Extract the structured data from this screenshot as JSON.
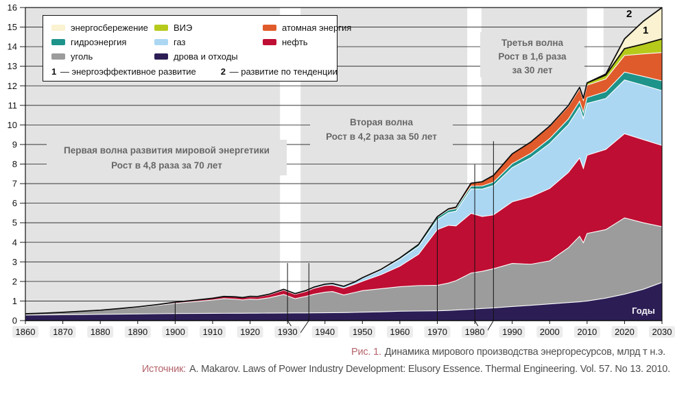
{
  "legend": {
    "items": [
      {
        "key": "saving",
        "label": "энергосбережение",
        "color": "#faf2d0",
        "icon": "energy-saving-swatch"
      },
      {
        "key": "hydro",
        "label": "гидроэнергия",
        "color": "#1d938a",
        "icon": "hydro-swatch"
      },
      {
        "key": "coal",
        "label": "уголь",
        "color": "#9c9c9c",
        "icon": "coal-swatch"
      },
      {
        "key": "renewables",
        "label": "ВИЭ",
        "color": "#b6ca1c",
        "icon": "renewables-swatch"
      },
      {
        "key": "gas",
        "label": "газ",
        "color": "#abd7f3",
        "icon": "gas-swatch"
      },
      {
        "key": "wood",
        "label": "дрова и отходы",
        "color": "#2c1e55",
        "icon": "wood-waste-swatch"
      },
      {
        "key": "nuclear",
        "label": "атомная энергия",
        "color": "#e05b2b",
        "icon": "nuclear-swatch"
      },
      {
        "key": "oil",
        "label": "нефть",
        "color": "#bf0e33",
        "icon": "oil-swatch"
      }
    ],
    "scenarios": [
      {
        "num": "1",
        "label": "энергоэффективное развитие"
      },
      {
        "num": "2",
        "label": "развитие по тенденции"
      }
    ]
  },
  "annotations": {
    "wave1": {
      "line1": "Первая волна развития мировой энергетики",
      "line2": "Рост в 4,8 раза за 70 лет"
    },
    "wave2": {
      "line1": "Вторая волна",
      "line2": "Рост в 4,2 раза за 50 лет"
    },
    "wave3": {
      "line1": "Третья волна",
      "line2": "Рост в 1,6 раза",
      "line3": "за 30 лет"
    }
  },
  "scenario_point_labels": {
    "efficient": "1",
    "trend": "2"
  },
  "axes": {
    "x_title": "Годы"
  },
  "caption": {
    "prefix": "Рис. 1.",
    "text": "Динамика мирового производства энергоресурсов, млрд т н.э."
  },
  "source": {
    "prefix": "Источник:",
    "text": "A. Makarov. Laws of Power Industry Development: Elusory Essence. Thermal Engineering. Vol. 57. No 13. 2010."
  },
  "chart_data": {
    "type": "area",
    "stacked": true,
    "title": "Динамика мирового производства энергоресурсов, млрд т н.э.",
    "xlabel": "Годы",
    "ylabel": "",
    "xlim": [
      1860,
      2030
    ],
    "ylim": [
      0,
      16
    ],
    "grid": true,
    "legend_position": "top-left",
    "x_ticks": [
      1860,
      1870,
      1880,
      1890,
      1900,
      1910,
      1920,
      1930,
      1940,
      1950,
      1960,
      1970,
      1980,
      1990,
      2000,
      2010,
      2020,
      2030
    ],
    "y_ticks": [
      0,
      1,
      2,
      3,
      4,
      5,
      6,
      7,
      8,
      9,
      10,
      11,
      12,
      13,
      14,
      15,
      16
    ],
    "x": [
      1860,
      1865,
      1870,
      1875,
      1880,
      1885,
      1890,
      1895,
      1900,
      1905,
      1910,
      1913,
      1916,
      1918,
      1920,
      1922,
      1925,
      1929,
      1932,
      1935,
      1937,
      1940,
      1942,
      1945,
      1948,
      1950,
      1955,
      1960,
      1965,
      1970,
      1973,
      1975,
      1979,
      1982,
      1985,
      1990,
      1995,
      2000,
      2005,
      2008,
      2009,
      2010,
      2015,
      2020,
      2025,
      2030
    ],
    "series": [
      {
        "key": "wood",
        "name": "дрова и отходы",
        "color": "#2c1e55",
        "values": [
          0.28,
          0.29,
          0.3,
          0.31,
          0.32,
          0.33,
          0.34,
          0.35,
          0.36,
          0.365,
          0.37,
          0.372,
          0.374,
          0.375,
          0.378,
          0.38,
          0.382,
          0.386,
          0.39,
          0.392,
          0.395,
          0.4,
          0.405,
          0.41,
          0.42,
          0.43,
          0.45,
          0.48,
          0.49,
          0.5,
          0.52,
          0.54,
          0.58,
          0.62,
          0.65,
          0.72,
          0.78,
          0.85,
          0.92,
          0.96,
          0.98,
          1.0,
          1.15,
          1.35,
          1.6,
          1.95
        ]
      },
      {
        "key": "coal",
        "name": "уголь",
        "color": "#9c9c9c",
        "values": [
          0.07,
          0.09,
          0.12,
          0.16,
          0.2,
          0.26,
          0.33,
          0.42,
          0.52,
          0.6,
          0.68,
          0.75,
          0.72,
          0.68,
          0.72,
          0.7,
          0.78,
          0.95,
          0.73,
          0.85,
          0.95,
          1.05,
          1.08,
          0.9,
          1.02,
          1.1,
          1.18,
          1.25,
          1.3,
          1.3,
          1.4,
          1.5,
          1.85,
          1.9,
          2.0,
          2.2,
          2.1,
          2.2,
          2.8,
          3.35,
          3.0,
          3.45,
          3.5,
          3.9,
          3.4,
          2.85
        ]
      },
      {
        "key": "oil",
        "name": "нефть",
        "color": "#bf0e33",
        "values": [
          0,
          0,
          0.005,
          0.008,
          0.01,
          0.02,
          0.03,
          0.04,
          0.05,
          0.06,
          0.08,
          0.1,
          0.11,
          0.11,
          0.12,
          0.13,
          0.15,
          0.22,
          0.22,
          0.25,
          0.3,
          0.34,
          0.33,
          0.35,
          0.42,
          0.48,
          0.72,
          1.05,
          1.6,
          2.85,
          2.95,
          2.8,
          3.05,
          2.8,
          2.75,
          3.15,
          3.45,
          3.7,
          3.85,
          4.0,
          3.8,
          4.0,
          4.1,
          4.3,
          4.25,
          4.15
        ]
      },
      {
        "key": "gas",
        "name": "газ",
        "color": "#abd7f3",
        "values": [
          0,
          0,
          0,
          0,
          0,
          0,
          0,
          0,
          0.01,
          0.01,
          0.01,
          0.01,
          0.01,
          0.01,
          0.02,
          0.02,
          0.03,
          0.04,
          0.04,
          0.05,
          0.06,
          0.07,
          0.08,
          0.09,
          0.12,
          0.15,
          0.22,
          0.35,
          0.4,
          0.5,
          0.65,
          0.75,
          1.25,
          1.4,
          1.5,
          1.75,
          2.0,
          2.3,
          2.45,
          2.6,
          2.55,
          2.65,
          2.6,
          2.75,
          2.78,
          2.8
        ]
      },
      {
        "key": "hydro",
        "name": "гидроэнергия",
        "color": "#1d938a",
        "values": [
          0,
          0,
          0,
          0,
          0,
          0,
          0,
          0,
          0,
          0,
          0,
          0,
          0,
          0,
          0,
          0,
          0,
          0,
          0,
          0,
          0,
          0,
          0,
          0,
          0,
          0.03,
          0.05,
          0.07,
          0.1,
          0.12,
          0.13,
          0.13,
          0.14,
          0.16,
          0.17,
          0.2,
          0.22,
          0.25,
          0.28,
          0.3,
          0.3,
          0.3,
          0.35,
          0.4,
          0.45,
          0.5
        ]
      },
      {
        "key": "nuclear",
        "name": "атомная энергия",
        "color": "#e05b2b",
        "values": [
          0,
          0,
          0,
          0,
          0,
          0,
          0,
          0,
          0,
          0,
          0,
          0,
          0,
          0,
          0,
          0,
          0,
          0,
          0,
          0,
          0,
          0,
          0,
          0,
          0,
          0,
          0,
          0,
          0,
          0.04,
          0.06,
          0.08,
          0.15,
          0.22,
          0.35,
          0.5,
          0.58,
          0.62,
          0.64,
          0.63,
          0.63,
          0.63,
          0.65,
          0.85,
          1.15,
          1.45
        ]
      },
      {
        "key": "renewables",
        "name": "ВИЭ",
        "color": "#b6ca1c",
        "values": [
          0,
          0,
          0,
          0,
          0,
          0,
          0,
          0,
          0,
          0,
          0,
          0,
          0,
          0,
          0,
          0,
          0,
          0,
          0,
          0,
          0,
          0,
          0,
          0,
          0,
          0,
          0,
          0,
          0,
          0,
          0,
          0,
          0,
          0,
          0,
          0,
          0,
          0.02,
          0.05,
          0.08,
          0.1,
          0.12,
          0.2,
          0.35,
          0.5,
          0.7
        ]
      },
      {
        "key": "saving",
        "name": "энергосбережение",
        "color": "#faf2d0",
        "values": [
          0,
          0,
          0,
          0,
          0,
          0,
          0,
          0,
          0,
          0,
          0,
          0,
          0,
          0,
          0,
          0,
          0,
          0,
          0,
          0,
          0,
          0,
          0,
          0,
          0,
          0,
          0,
          0,
          0,
          0,
          0,
          0,
          0,
          0,
          0,
          0,
          0,
          0,
          0,
          0,
          0,
          0,
          0.05,
          0.5,
          1.17,
          1.6
        ]
      }
    ],
    "scenario_lines": {
      "line1": {
        "label": "1",
        "meaning": "энергоэффективное развитие",
        "equals": "stack top without энергосбережение",
        "value_2030": 14.4
      },
      "line2": {
        "label": "2",
        "meaning": "развитие по тенденции",
        "equals": "stack top with энергосбережение",
        "value_2030": 16.0,
        "starts_from": 2010
      }
    },
    "white_bands": [
      [
        1928.0,
        1933.5
      ],
      [
        1978.0,
        1981.8
      ],
      [
        2010.0,
        2014.4
      ]
    ],
    "markers": {
      "singles": [
        {
          "year": 1900,
          "top": 0.93
        },
        {
          "year": 1970,
          "top": 5.31
        }
      ],
      "pairs": [
        {
          "x1": 1930,
          "top1": 2.94,
          "x2": 1935.7,
          "top2": 2.94,
          "apex": 1932.8
        },
        {
          "x1": 1980,
          "top1": 7.98,
          "x2": 1985,
          "top2": 9.17,
          "apex": 1982.5
        }
      ]
    },
    "colors": {
      "plot_bg": "#e3e3e3",
      "grid": "#1c1c1c",
      "line": "#0d0d0d",
      "separator": "#ffffff",
      "tick_pill": "#ececec",
      "accent_text": "#b5646c"
    }
  }
}
